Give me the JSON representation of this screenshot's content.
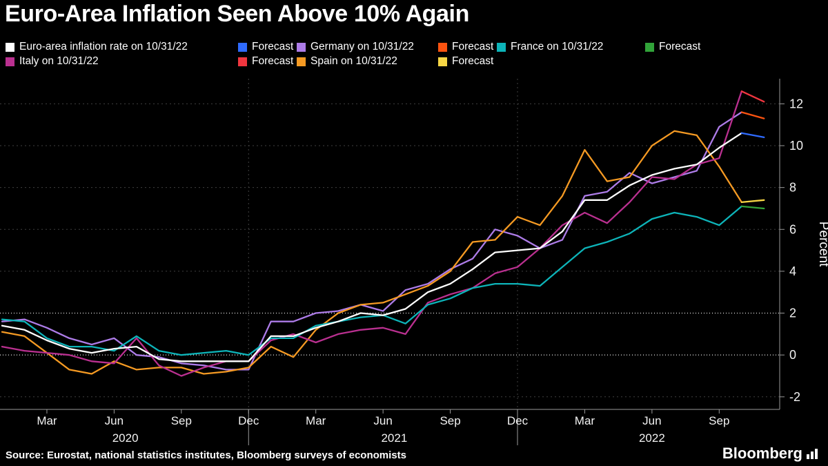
{
  "title": "Euro-Area Inflation Seen Above 10% Again",
  "source": "Source: Eurostat, national statistics institutes, Bloomberg surveys of economists",
  "brand": "Bloomberg",
  "colors": {
    "background": "#000000",
    "text": "#ffffff",
    "axis": "#9b9b9b",
    "grid": "#414141",
    "grid_highlight": "#dcdcdc"
  },
  "legend": {
    "rows": [
      [
        {
          "label": "Euro-area inflation rate on 10/31/22",
          "color": "#ffffff"
        },
        {
          "label": "Forecast",
          "color": "#2f6bff"
        },
        {
          "label": "Germany on 10/31/22",
          "color": "#ad7ce8"
        },
        {
          "label": "Forecast",
          "color": "#fc5310"
        },
        {
          "label": "France on 10/31/22",
          "color": "#0db4b9"
        },
        {
          "label": "Forecast",
          "color": "#31a339"
        }
      ],
      [
        {
          "label": "Italy on 10/31/22",
          "color": "#ba3090"
        },
        {
          "label": "Forecast",
          "color": "#f0363f"
        },
        {
          "label": "Spain on 10/31/22",
          "color": "#f59a23"
        },
        {
          "label": "Forecast",
          "color": "#f6d645"
        }
      ]
    ]
  },
  "chart_data": {
    "type": "line",
    "title": "Euro-Area Inflation Seen Above 10% Again",
    "ylabel": "Percent",
    "xlabel": "",
    "x_unit": "months since Jan 2020 (monthly, Jan 2020 - Nov 2022)",
    "ylim": [
      -2.6,
      13.2
    ],
    "xlim": [
      0,
      34.7
    ],
    "yticks": [
      -2,
      0,
      2,
      4,
      6,
      8,
      10,
      12
    ],
    "highlight_gridlines": [
      0,
      2
    ],
    "grid": true,
    "legend_position": "top",
    "xticks": [
      {
        "m": 2,
        "label": "Mar"
      },
      {
        "m": 5,
        "label": "Jun"
      },
      {
        "m": 8,
        "label": "Sep"
      },
      {
        "m": 11,
        "label": "Dec"
      },
      {
        "m": 14,
        "label": "Mar"
      },
      {
        "m": 17,
        "label": "Jun"
      },
      {
        "m": 20,
        "label": "Sep"
      },
      {
        "m": 23,
        "label": "Dec"
      },
      {
        "m": 26,
        "label": "Mar"
      },
      {
        "m": 29,
        "label": "Jun"
      },
      {
        "m": 32,
        "label": "Sep"
      }
    ],
    "year_labels": [
      {
        "m": 5.5,
        "label": "2020"
      },
      {
        "m": 17.5,
        "label": "2021"
      },
      {
        "m": 29,
        "label": "2022"
      }
    ],
    "year_separators": [
      11,
      23
    ],
    "series": [
      {
        "id": "germany",
        "name": "Germany on 10/31/22",
        "color": "#ad7ce8",
        "x_start": 0,
        "values": [
          1.6,
          1.7,
          1.3,
          0.8,
          0.5,
          0.8,
          0.0,
          -0.1,
          -0.4,
          -0.5,
          -0.7,
          -0.7,
          1.6,
          1.6,
          2.0,
          2.1,
          2.4,
          2.1,
          3.1,
          3.4,
          4.1,
          4.6,
          6.0,
          5.7,
          5.1,
          5.5,
          7.6,
          7.8,
          8.7,
          8.2,
          8.5,
          8.8,
          10.9,
          11.6
        ]
      },
      {
        "id": "spain",
        "name": "Spain on 10/31/22",
        "color": "#f59a23",
        "x_start": 0,
        "values": [
          1.1,
          0.9,
          0.1,
          -0.7,
          -0.9,
          -0.3,
          -0.7,
          -0.6,
          -0.6,
          -0.9,
          -0.8,
          -0.6,
          0.4,
          -0.1,
          1.2,
          2.0,
          2.4,
          2.5,
          2.9,
          3.3,
          4.0,
          5.4,
          5.5,
          6.6,
          6.2,
          7.6,
          9.8,
          8.3,
          8.5,
          10.0,
          10.7,
          10.5,
          9.0,
          7.3
        ]
      },
      {
        "id": "italy",
        "name": "Italy on 10/31/22",
        "color": "#ba3090",
        "x_start": 0,
        "values": [
          0.4,
          0.2,
          0.1,
          0.0,
          -0.3,
          -0.4,
          0.8,
          -0.5,
          -1.0,
          -0.6,
          -0.3,
          -0.3,
          0.7,
          1.0,
          0.6,
          1.0,
          1.2,
          1.3,
          1.0,
          2.5,
          2.9,
          3.2,
          3.9,
          4.2,
          5.1,
          6.2,
          6.8,
          6.3,
          7.3,
          8.5,
          8.4,
          9.1,
          9.4,
          12.6
        ]
      },
      {
        "id": "france",
        "name": "France on 10/31/22",
        "color": "#0db4b9",
        "x_start": 0,
        "values": [
          1.7,
          1.6,
          0.8,
          0.4,
          0.4,
          0.2,
          0.9,
          0.2,
          0.0,
          0.1,
          0.2,
          0.0,
          0.8,
          0.8,
          1.4,
          1.6,
          1.8,
          1.9,
          1.5,
          2.4,
          2.7,
          3.2,
          3.4,
          3.4,
          3.3,
          4.2,
          5.1,
          5.4,
          5.8,
          6.5,
          6.8,
          6.6,
          6.2,
          7.1
        ]
      },
      {
        "id": "euro_area",
        "name": "Euro-area inflation rate on 10/31/22",
        "color": "#ffffff",
        "x_start": 0,
        "values": [
          1.4,
          1.2,
          0.7,
          0.3,
          0.1,
          0.3,
          0.4,
          -0.2,
          -0.3,
          -0.3,
          -0.3,
          -0.3,
          0.9,
          0.9,
          1.3,
          1.6,
          2.0,
          1.9,
          2.2,
          3.0,
          3.4,
          4.1,
          4.9,
          5.0,
          5.1,
          5.9,
          7.4,
          7.4,
          8.1,
          8.6,
          8.9,
          9.1,
          9.9,
          10.6
        ]
      },
      {
        "id": "spain_forecast",
        "name": "Spain forecast",
        "color": "#f6d645",
        "x_start": 33,
        "values": [
          7.3,
          7.4
        ]
      },
      {
        "id": "france_forecast",
        "name": "France forecast",
        "color": "#31a339",
        "x_start": 33,
        "values": [
          7.1,
          7.0
        ]
      },
      {
        "id": "germany_forecast",
        "name": "Germany forecast",
        "color": "#fc5310",
        "x_start": 33,
        "values": [
          11.6,
          11.3
        ]
      },
      {
        "id": "italy_forecast",
        "name": "Italy forecast",
        "color": "#f0363f",
        "x_start": 33,
        "values": [
          12.6,
          12.1
        ]
      },
      {
        "id": "euro_area_forecast",
        "name": "Euro-area forecast",
        "color": "#2f6bff",
        "x_start": 33,
        "values": [
          10.6,
          10.4
        ]
      }
    ]
  }
}
